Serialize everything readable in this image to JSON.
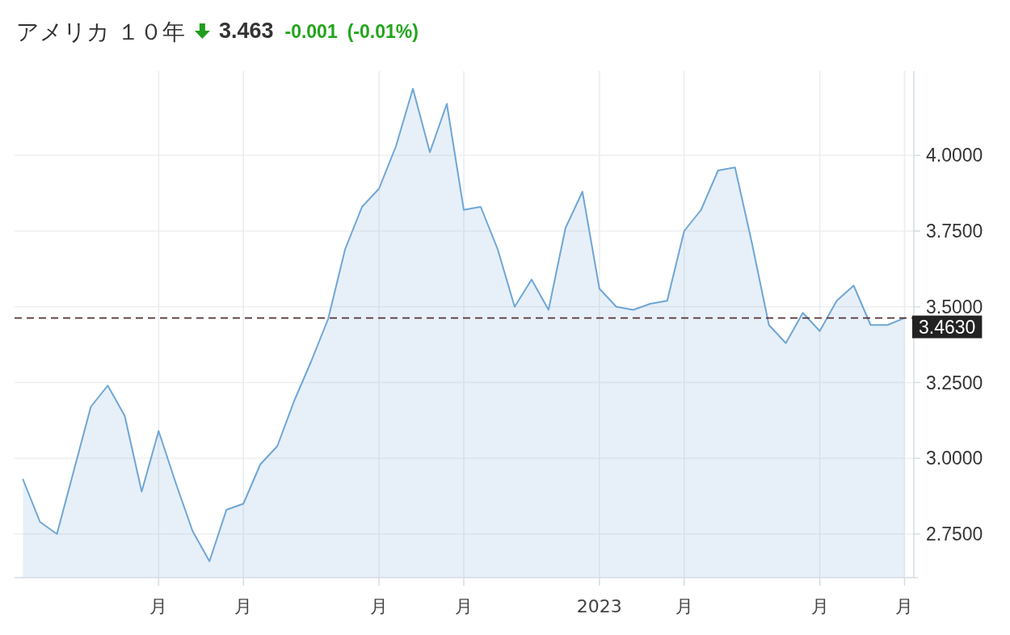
{
  "chart_data": {
    "type": "area",
    "title": "アメリカ １０年",
    "annotations": [
      "3.463",
      "-0.001",
      "(-0.01%)"
    ],
    "categories": [
      null,
      null,
      null,
      null,
      null,
      null,
      null,
      null,
      "月",
      null,
      null,
      null,
      null,
      "月",
      null,
      null,
      null,
      null,
      null,
      null,
      null,
      "月",
      null,
      null,
      null,
      null,
      "月",
      null,
      null,
      null,
      null,
      null,
      null,
      null,
      "2023",
      null,
      null,
      null,
      null,
      "月",
      null,
      null,
      null,
      null,
      null,
      null,
      null,
      "月",
      null,
      null,
      null,
      null,
      "月"
    ],
    "series": [
      {
        "color": "#6fa6d6",
        "values": [
          2.93,
          2.79,
          2.75,
          2.96,
          3.17,
          3.24,
          3.14,
          2.89,
          3.09,
          2.92,
          2.76,
          2.66,
          2.83,
          2.85,
          2.98,
          3.04,
          3.19,
          3.32,
          3.46,
          3.69,
          3.83,
          3.89,
          4.03,
          4.22,
          4.01,
          4.17,
          3.82,
          3.83,
          3.69,
          3.5,
          3.59,
          3.49,
          3.76,
          3.88,
          3.56,
          3.5,
          3.49,
          3.51,
          3.52,
          3.75,
          3.82,
          3.95,
          3.96,
          3.71,
          3.44,
          3.38,
          3.48,
          3.42,
          3.52,
          3.57,
          3.44,
          3.44,
          3.463
        ]
      }
    ],
    "ylim": [
      2.606,
      4.278
    ],
    "yticks": [
      {
        "value": 2.75,
        "label": "2.7500"
      },
      {
        "value": 3.0,
        "label": "3.0000"
      },
      {
        "value": 3.25,
        "label": "3.2500"
      },
      {
        "value": 3.5,
        "label": "3.5000"
      },
      {
        "value": 3.75,
        "label": "3.7500"
      },
      {
        "value": 4.0,
        "label": "4.0000"
      }
    ],
    "ref_lines": [
      {
        "axis": "y",
        "value": 3.463,
        "label": "3.4630",
        "line_style": "dashed",
        "color": "#553333"
      }
    ],
    "grid": true
  }
}
